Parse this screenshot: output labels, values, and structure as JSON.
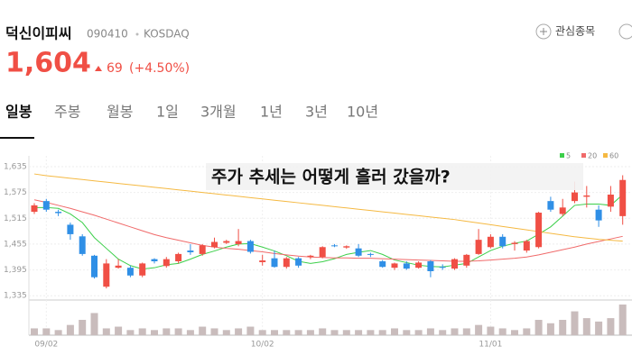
{
  "header": {
    "name": "덕신이피씨",
    "code": "090410",
    "market": "KOSDAQ",
    "watch_button": "관심종목",
    "price": "1,604",
    "change": "69",
    "change_pct": "(+4.50%)"
  },
  "tabs": [
    "일봉",
    "주봉",
    "월봉",
    "1일",
    "3개월",
    "1년",
    "3년",
    "10년"
  ],
  "chart_data": {
    "type": "candlestick",
    "title": "주가 추세는  어떻게 흘러 갔을까?",
    "categories": [
      null,
      "09/02",
      null,
      null,
      null,
      null,
      null,
      null,
      null,
      null,
      null,
      null,
      null,
      null,
      null,
      null,
      null,
      null,
      null,
      "10/02",
      null,
      null,
      null,
      null,
      null,
      null,
      null,
      null,
      null,
      null,
      null,
      null,
      null,
      null,
      null,
      null,
      null,
      null,
      "11/01",
      null,
      null,
      null,
      null,
      null,
      null,
      null,
      null,
      null,
      null,
      null
    ],
    "open": [
      1530,
      1555,
      1530,
      1500,
      1473,
      1428,
      1356,
      1400,
      1400,
      1382,
      1420,
      1404,
      1415,
      1440,
      1432,
      1448,
      1458,
      1455,
      1462,
      1413,
      1422,
      1402,
      1422,
      1425,
      1425,
      1452,
      1447,
      1445,
      1432,
      1415,
      1400,
      1410,
      1400,
      1415,
      1402,
      1398,
      1405,
      1432,
      1448,
      1472,
      1455,
      1440,
      1448,
      1555,
      1525,
      1555,
      1565,
      1535,
      1542,
      1520
    ],
    "high": [
      1550,
      1560,
      1535,
      1505,
      1478,
      1430,
      1420,
      1420,
      1405,
      1412,
      1422,
      1425,
      1435,
      1455,
      1455,
      1470,
      1465,
      1490,
      1465,
      1430,
      1440,
      1425,
      1425,
      1430,
      1450,
      1455,
      1452,
      1455,
      1435,
      1418,
      1412,
      1415,
      1415,
      1418,
      1408,
      1422,
      1432,
      1490,
      1478,
      1478,
      1462,
      1465,
      1530,
      1565,
      1560,
      1600,
      1590,
      1545,
      1590,
      1615
    ],
    "low": [
      1525,
      1530,
      1520,
      1465,
      1428,
      1375,
      1352,
      1398,
      1378,
      1378,
      1410,
      1400,
      1410,
      1430,
      1428,
      1445,
      1455,
      1450,
      1433,
      1405,
      1400,
      1398,
      1400,
      1420,
      1422,
      1448,
      1444,
      1425,
      1425,
      1400,
      1395,
      1395,
      1398,
      1378,
      1395,
      1395,
      1400,
      1430,
      1445,
      1445,
      1440,
      1435,
      1445,
      1530,
      1520,
      1550,
      1540,
      1495,
      1530,
      1500
    ],
    "close": [
      1545,
      1535,
      1527,
      1478,
      1432,
      1378,
      1410,
      1405,
      1382,
      1410,
      1415,
      1420,
      1432,
      1436,
      1452,
      1460,
      1462,
      1462,
      1437,
      1417,
      1402,
      1422,
      1405,
      1428,
      1448,
      1450,
      1450,
      1428,
      1430,
      1402,
      1410,
      1398,
      1412,
      1392,
      1400,
      1420,
      1430,
      1465,
      1472,
      1450,
      1458,
      1462,
      1528,
      1535,
      1540,
      1575,
      1568,
      1510,
      1570,
      1604
    ],
    "volume": [
      4,
      4,
      3,
      6,
      9,
      13,
      4,
      5,
      3,
      4,
      3,
      4,
      4,
      3,
      5,
      4,
      3,
      4,
      5,
      3,
      3,
      3,
      3,
      3,
      4,
      3,
      3,
      3,
      3,
      3,
      4,
      3,
      3,
      4,
      3,
      4,
      4,
      6,
      5,
      4,
      3,
      4,
      9,
      7,
      9,
      14,
      10,
      8,
      10,
      18
    ],
    "vlim": [
      0,
      18
    ],
    "up_color": "#f04f45",
    "down_color": "#2f8fe6",
    "series": [
      {
        "name": "5",
        "color": "#3ccf4a",
        "values": [
          1540,
          1540,
          1538,
          1525,
          1505,
          1470,
          1445,
          1420,
          1405,
          1397,
          1400,
          1407,
          1410,
          1420,
          1431,
          1439,
          1448,
          1455,
          1456,
          1448,
          1439,
          1428,
          1415,
          1410,
          1414,
          1421,
          1431,
          1436,
          1440,
          1431,
          1418,
          1412,
          1406,
          1403,
          1402,
          1406,
          1410,
          1425,
          1440,
          1450,
          1457,
          1462,
          1478,
          1495,
          1520,
          1545,
          1548,
          1548,
          1545,
          1570
        ]
      },
      {
        "name": "20",
        "color": "#f06a6a",
        "values": [
          1558,
          1552,
          1545,
          1538,
          1530,
          1522,
          1513,
          1504,
          1495,
          1486,
          1477,
          1470,
          1464,
          1458,
          1452,
          1448,
          1445,
          1443,
          1440,
          1437,
          1433,
          1430,
          1427,
          1425,
          1424,
          1423,
          1423,
          1422,
          1422,
          1421,
          1420,
          1419,
          1418,
          1417,
          1416,
          1415,
          1415,
          1416,
          1418,
          1420,
          1422,
          1425,
          1430,
          1436,
          1442,
          1448,
          1455,
          1461,
          1467,
          1473
        ]
      },
      {
        "name": "60",
        "color": "#f5b942",
        "values": [
          1618,
          1614,
          1611,
          1608,
          1605,
          1602,
          1599,
          1596,
          1593,
          1590,
          1587,
          1584,
          1581,
          1578,
          1575,
          1572,
          1569,
          1566,
          1563,
          1560,
          1557,
          1554,
          1551,
          1548,
          1545,
          1542,
          1539,
          1536,
          1533,
          1530,
          1527,
          1524,
          1521,
          1518,
          1515,
          1512,
          1508,
          1504,
          1500,
          1496,
          1492,
          1488,
          1484,
          1480,
          1476,
          1472,
          1469,
          1466,
          1464,
          1462
        ]
      }
    ],
    "ylim": [
      1325,
      1660
    ],
    "yticks": [
      {
        "value": 1635,
        "label": "1,635"
      },
      {
        "value": 1575,
        "label": "1,575"
      },
      {
        "value": 1515,
        "label": "1,515"
      },
      {
        "value": 1455,
        "label": "1,455"
      },
      {
        "value": 1395,
        "label": "1,395"
      },
      {
        "value": 1335,
        "label": "1,335"
      }
    ],
    "grid": true
  }
}
